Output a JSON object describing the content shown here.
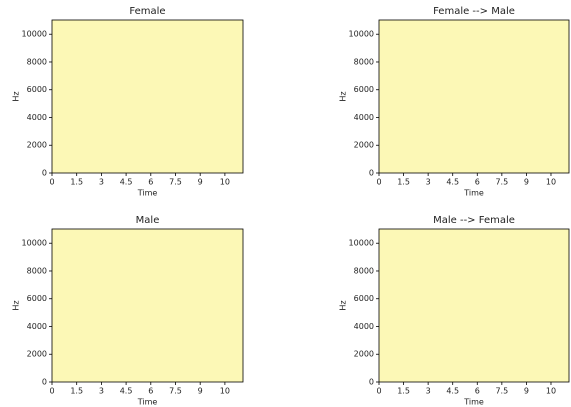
{
  "chart_data": [
    {
      "type": "spectrogram",
      "title": "Female",
      "xlabel": "Time",
      "ylabel": "Hz",
      "color": "#fcf8b6",
      "xlim": [
        0,
        11.6
      ],
      "xticks": [
        0,
        1.5,
        3,
        4.5,
        6,
        7.5,
        9,
        {
          "value": 10.5,
          "label": "10"
        }
      ],
      "ylim": [
        0,
        11025
      ],
      "yticks": [
        0,
        2000,
        4000,
        6000,
        8000,
        10000
      ]
    },
    {
      "type": "spectrogram",
      "title": "Female --> Male",
      "xlabel": "Time",
      "ylabel": "Hz",
      "color": "#fcf8b6",
      "xlim": [
        0,
        11.6
      ],
      "xticks": [
        0,
        1.5,
        3,
        4.5,
        6,
        7.5,
        9,
        {
          "value": 10.5,
          "label": "10"
        }
      ],
      "ylim": [
        0,
        11025
      ],
      "yticks": [
        0,
        2000,
        4000,
        6000,
        8000,
        10000
      ]
    },
    {
      "type": "spectrogram",
      "title": "Male",
      "xlabel": "Time",
      "ylabel": "Hz",
      "color": "#fcf8b6",
      "xlim": [
        0,
        11.6
      ],
      "xticks": [
        0,
        1.5,
        3,
        4.5,
        6,
        7.5,
        9,
        {
          "value": 10.5,
          "label": "10"
        }
      ],
      "ylim": [
        0,
        11025
      ],
      "yticks": [
        0,
        2000,
        4000,
        6000,
        8000,
        10000
      ]
    },
    {
      "type": "spectrogram",
      "title": "Male --> Female",
      "xlabel": "Time",
      "ylabel": "Hz",
      "color": "#fcf8b6",
      "xlim": [
        0,
        11.6
      ],
      "xticks": [
        0,
        1.5,
        3,
        4.5,
        6,
        7.5,
        9,
        {
          "value": 10.5,
          "label": "10"
        }
      ],
      "ylim": [
        0,
        11025
      ],
      "yticks": [
        0,
        2000,
        4000,
        6000,
        8000,
        10000
      ]
    }
  ]
}
